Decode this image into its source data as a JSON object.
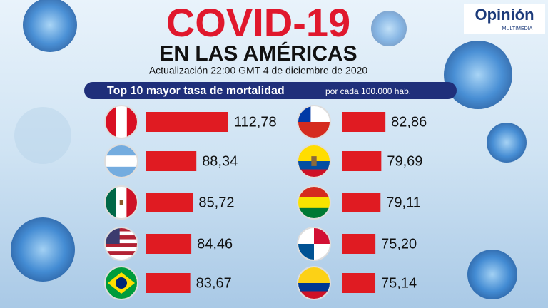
{
  "header": {
    "title": "COVID-19",
    "subtitle": "EN LAS AMÉRICAS",
    "update": "Actualización 22:00 GMT 4 de diciembre de 2020",
    "logo": "Opinión",
    "logo_sub": "MULTIMEDIA"
  },
  "chart_data": {
    "type": "bar",
    "title": "Top 10 mayor tasa de mortalidad",
    "subtitle": "por cada 100.000 hab.",
    "values": [
      112.78,
      88.34,
      85.72,
      84.46,
      83.67,
      82.86,
      79.69,
      79.11,
      75.2,
      75.14
    ],
    "value_labels": [
      "112,78",
      "88,34",
      "85,72",
      "84,46",
      "83,67",
      "82,86",
      "79,69",
      "79,11",
      "75,20",
      "75,14"
    ],
    "xlim": [
      50,
      115
    ],
    "color": "#e01b22"
  }
}
